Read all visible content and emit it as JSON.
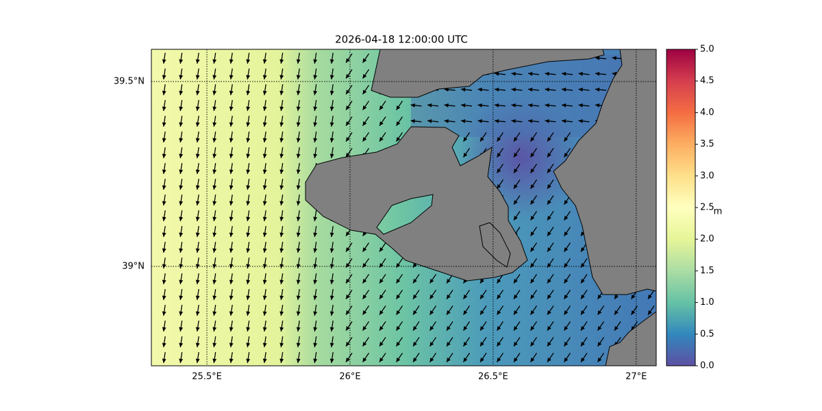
{
  "title": "2026-04-18 12:00:00 UTC",
  "map": {
    "xlim": [
      25.306,
      27.07
    ],
    "ylim": [
      38.731,
      39.587
    ],
    "xticks": [
      {
        "value": 25.5,
        "label": "25.5°E"
      },
      {
        "value": 26,
        "label": "26°E"
      },
      {
        "value": 26.5,
        "label": "26.5°E"
      },
      {
        "value": 27,
        "label": "27°E"
      }
    ],
    "yticks": [
      {
        "value": 39,
        "label": "39°N"
      },
      {
        "value": 39.5,
        "label": "39.5°N"
      }
    ]
  },
  "colorbar": {
    "label": "m",
    "lim": [
      0,
      5
    ],
    "ticks": [
      {
        "value": 0,
        "label": "0.0"
      },
      0.5,
      {
        "value": 1,
        "label": "1.0"
      },
      1.5,
      {
        "value": 2,
        "label": "2.0"
      },
      2.5,
      {
        "value": 3,
        "label": "3.0"
      },
      3.5,
      {
        "value": 4,
        "label": "4.0"
      },
      4.5,
      {
        "value": 5,
        "label": "5.0"
      }
    ]
  }
}
